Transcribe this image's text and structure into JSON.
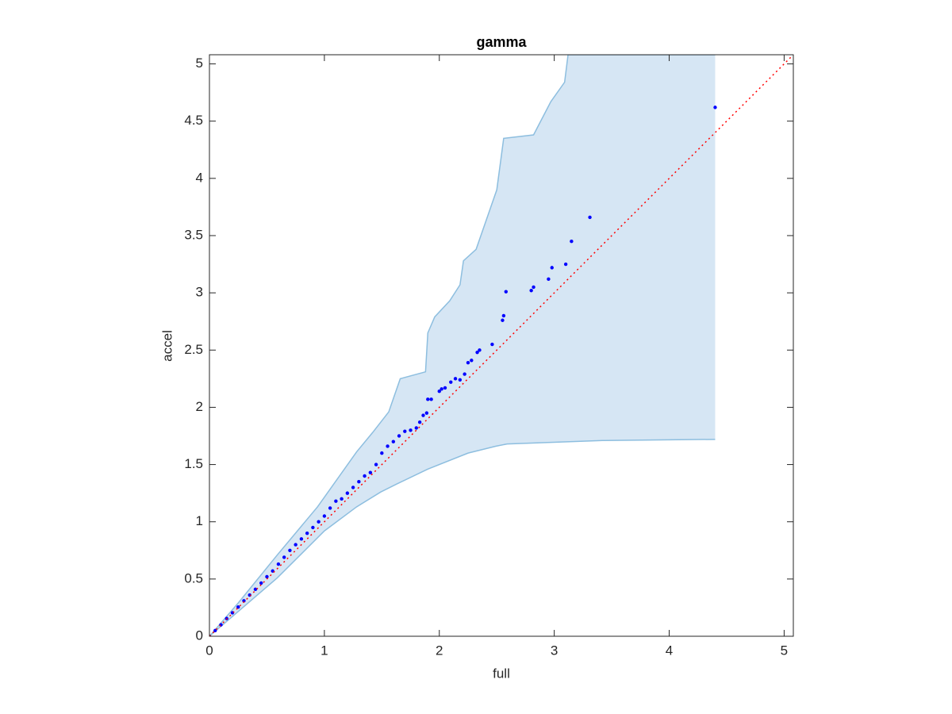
{
  "chart_data": {
    "type": "scatter",
    "title": "gamma",
    "x_label": "full",
    "y_label": "accel",
    "x": [
      0,
      0.05,
      0.1,
      0.15,
      0.2,
      0.25,
      0.3,
      0.35,
      0.4,
      0.45,
      0.5,
      0.55,
      0.6,
      0.65,
      0.7,
      0.75,
      0.8,
      0.85,
      0.9,
      0.95,
      1.0,
      1.05,
      1.1,
      1.15,
      1.2,
      1.25,
      1.3,
      1.35,
      1.4,
      1.45,
      1.5,
      1.55,
      1.6,
      1.65,
      1.7,
      1.75,
      1.8,
      1.83,
      1.86,
      1.89,
      1.9,
      1.93,
      2.0,
      2.02,
      2.05,
      2.1,
      2.14,
      2.18,
      2.22,
      2.25,
      2.28,
      2.33,
      2.35,
      2.46,
      2.55,
      2.56,
      2.58,
      2.8,
      2.82,
      2.95,
      2.98,
      3.1,
      3.15,
      3.31,
      4.4
    ],
    "y": [
      0,
      0.05,
      0.1,
      0.155,
      0.205,
      0.255,
      0.31,
      0.36,
      0.41,
      0.465,
      0.52,
      0.57,
      0.63,
      0.69,
      0.75,
      0.8,
      0.85,
      0.9,
      0.95,
      1.0,
      1.05,
      1.12,
      1.18,
      1.2,
      1.25,
      1.3,
      1.35,
      1.4,
      1.43,
      1.5,
      1.6,
      1.66,
      1.7,
      1.75,
      1.79,
      1.8,
      1.82,
      1.87,
      1.93,
      1.95,
      2.07,
      2.07,
      2.14,
      2.16,
      2.17,
      2.22,
      2.25,
      2.24,
      2.29,
      2.39,
      2.41,
      2.48,
      2.5,
      2.55,
      2.76,
      2.8,
      3.01,
      3.02,
      3.05,
      3.12,
      3.22,
      3.25,
      3.45,
      3.66,
      4.62
    ],
    "color": "#0000ff",
    "band_upper": {
      "x": [
        0,
        0.25,
        0.59,
        0.94,
        1.28,
        1.42,
        1.56,
        1.66,
        1.88,
        1.9,
        1.96,
        2.09,
        2.18,
        2.21,
        2.32,
        2.5,
        2.56,
        2.82,
        2.97,
        3.09,
        3.12,
        4.4
      ],
      "y": [
        0,
        0.29,
        0.71,
        1.13,
        1.61,
        1.78,
        1.96,
        2.25,
        2.31,
        2.65,
        2.79,
        2.93,
        3.07,
        3.28,
        3.38,
        3.9,
        4.35,
        4.38,
        4.67,
        4.84,
        5.08,
        5.08
      ]
    },
    "band_lower": {
      "x": [
        0,
        0.59,
        1.0,
        1.28,
        1.49,
        1.63,
        1.9,
        2.25,
        2.49,
        2.59,
        3.42,
        4.4
      ],
      "y": [
        0,
        0.51,
        0.92,
        1.13,
        1.26,
        1.33,
        1.46,
        1.6,
        1.66,
        1.68,
        1.71,
        1.72
      ]
    },
    "band_fill": "#d6e6f4",
    "band_edge": "#8dbedf",
    "reference": {
      "x": [
        0,
        5.08
      ],
      "y": [
        0,
        5.08
      ],
      "color": "#ff0000"
    },
    "xlim": [
      0,
      5.08
    ],
    "ylim": [
      0,
      5.08
    ],
    "xticks": [
      0,
      1,
      2,
      3,
      4,
      5
    ],
    "yticks": [
      0,
      0.5,
      1,
      1.5,
      2,
      2.5,
      3,
      3.5,
      4,
      4.5,
      5
    ]
  }
}
